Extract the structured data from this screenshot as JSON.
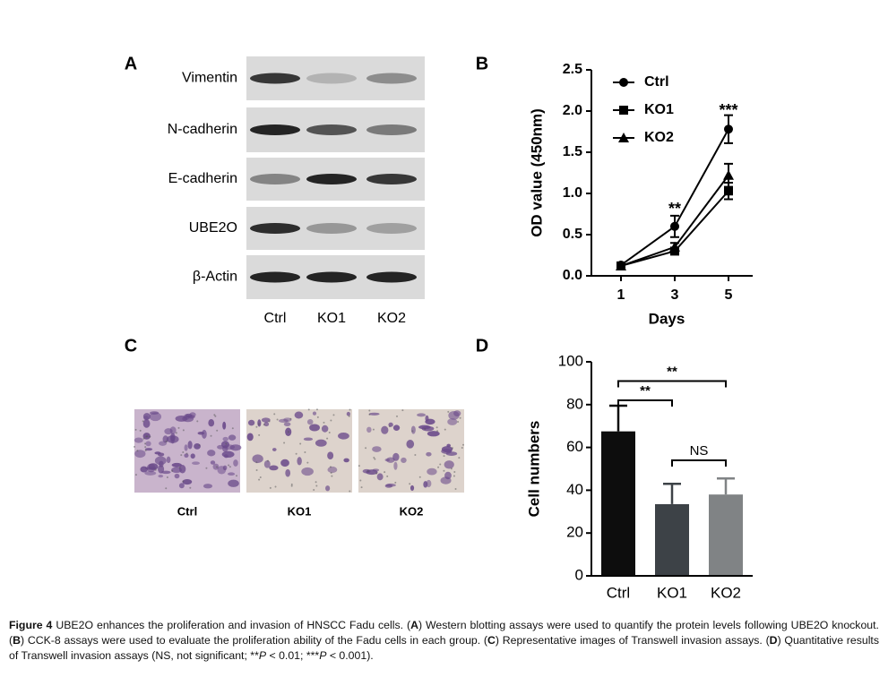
{
  "panel_labels": [
    "A",
    "B",
    "C",
    "D"
  ],
  "blot": {
    "rows": [
      "Vimentin",
      "N-cadherin",
      "E-cadherin",
      "UBE2O",
      "β-Actin"
    ],
    "columns": [
      "Ctrl",
      "KO1",
      "KO2"
    ]
  },
  "images": {
    "labels": [
      "Ctrl",
      "KO1",
      "KO2"
    ]
  },
  "chart_data": [
    {
      "type": "line",
      "x_label": "Days",
      "y_label": "OD value (450nm)",
      "x": [
        1,
        3,
        5
      ],
      "xlim": [
        -0.1,
        5.9
      ],
      "xticks": [
        1,
        3,
        5
      ],
      "ylim": [
        0,
        2.5
      ],
      "yticks": [
        {
          "value": 0,
          "label": "0.0"
        },
        0.5,
        {
          "value": 1,
          "label": "1.0"
        },
        1.5,
        {
          "value": 2,
          "label": "2.0"
        },
        2.5
      ],
      "legend": "upper left",
      "series": [
        {
          "name": "Ctrl",
          "color": "#000000",
          "marker": "circle",
          "values": [
            0.13,
            0.6,
            1.78
          ],
          "errors": [
            0.02,
            0.13,
            0.17
          ]
        },
        {
          "name": "KO1",
          "color": "#000000",
          "marker": "square",
          "values": [
            0.12,
            0.3,
            1.03
          ],
          "errors": [
            0.01,
            0.03,
            0.1
          ]
        },
        {
          "name": "KO2",
          "color": "#000000",
          "marker": "triangle",
          "values": [
            0.12,
            0.35,
            1.22
          ],
          "errors": [
            0.01,
            0.05,
            0.14
          ]
        }
      ],
      "annotations": [
        {
          "label": "**",
          "x": 3,
          "y": 0.8
        },
        {
          "label": "***",
          "x": 5,
          "y": 2.0
        }
      ]
    },
    {
      "type": "bar",
      "y_label": "Cell numbers",
      "categories": [
        "Ctrl",
        "KO1",
        "KO2"
      ],
      "values": [
        67.5,
        33.5,
        38
      ],
      "errors": [
        12,
        9.5,
        7.5
      ],
      "colors": [
        "#0d0d0d",
        "#3d4247",
        "#808385"
      ],
      "ylim": [
        0,
        100
      ],
      "yticks": [
        0,
        20,
        40,
        60,
        80,
        100
      ],
      "comparisons": [
        {
          "label": "**",
          "between": [
            "Ctrl",
            "KO2"
          ],
          "y": 91
        },
        {
          "label": "**",
          "between": [
            "Ctrl",
            "KO1"
          ],
          "y": 82
        },
        {
          "label": "NS",
          "between": [
            "KO1",
            "KO2"
          ],
          "y": 54
        }
      ]
    }
  ],
  "caption": {
    "label": "Figure 4",
    "parts": [
      " UBE2O enhances the proliferation and invasion of HNSCC Fadu cells. (",
      "A",
      ") Western blotting assays were used to quantify the protein levels following UBE2O knockout. (",
      "B",
      ") CCK-8 assays were used to evaluate the proliferation ability of the Fadu cells in each group. (",
      "C",
      ") Representative images of Transwell invasion assays. (",
      "D",
      ") Quantitative results of Transwell invasion assays (NS, not significant; **",
      "P",
      " < 0.01; ***",
      "P",
      " < 0.001)."
    ]
  }
}
